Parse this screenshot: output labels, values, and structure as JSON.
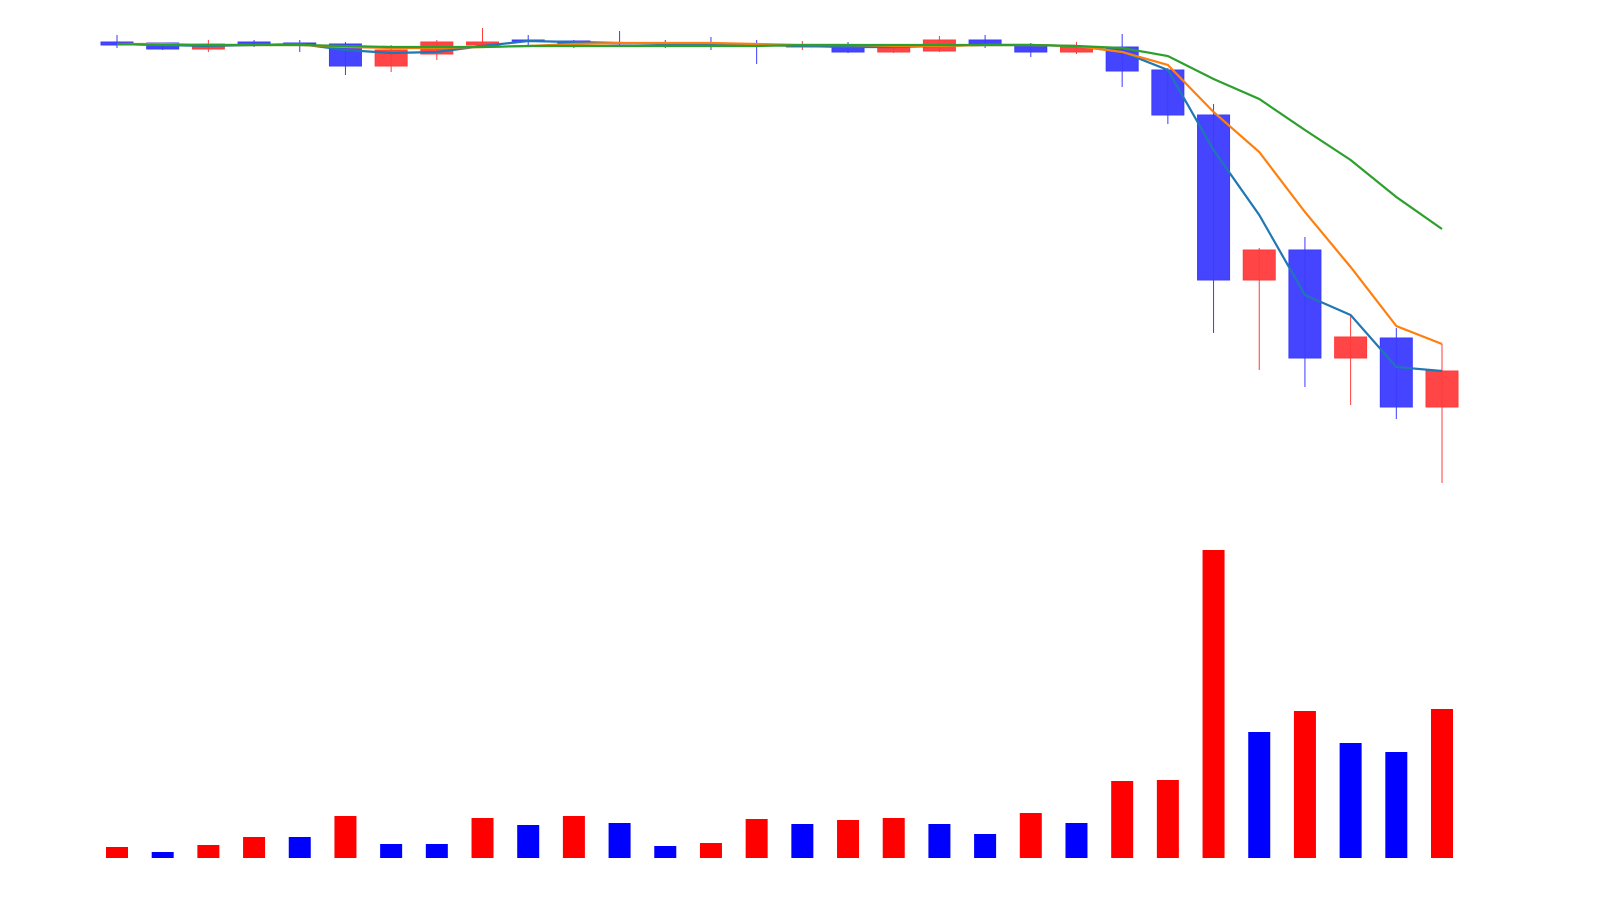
{
  "chart_data": {
    "type": "candlestick",
    "open": [
      100.2,
      100.0,
      98.8,
      100.2,
      100.0,
      99.8,
      95.4,
      97.8,
      99.6,
      100.6,
      100.4,
      100.0,
      100.0,
      99.8,
      99.8,
      99.2,
      99.6,
      98.2,
      98.4,
      100.6,
      99.6,
      98.2,
      99.2,
      94.6,
      85.6,
      52.6,
      58.6,
      37.0,
      41.0,
      27.2
    ],
    "close": [
      99.6,
      98.8,
      99.8,
      99.6,
      99.8,
      95.4,
      98.6,
      100.2,
      100.2,
      100.4,
      99.8,
      99.8,
      99.8,
      99.6,
      99.4,
      99.4,
      98.2,
      99.4,
      100.6,
      99.6,
      98.2,
      99.2,
      94.4,
      85.6,
      52.6,
      58.6,
      37.0,
      41.2,
      27.2,
      34.4
    ],
    "high": [
      101.6,
      100.0,
      100.6,
      100.6,
      100.6,
      100.2,
      99.6,
      100.6,
      103.0,
      101.6,
      100.6,
      102.4,
      100.6,
      101.2,
      100.6,
      100.4,
      100.2,
      99.8,
      101.4,
      101.6,
      100.0,
      100.2,
      101.8,
      95.0,
      87.8,
      59.0,
      61.2,
      45.4,
      43.0,
      39.8
    ],
    "low": [
      99.0,
      98.6,
      98.2,
      99.2,
      98.2,
      93.6,
      94.2,
      96.6,
      99.6,
      99.4,
      99.0,
      99.4,
      99.0,
      98.6,
      95.8,
      98.6,
      98.0,
      98.0,
      98.2,
      99.0,
      97.2,
      97.8,
      91.2,
      83.8,
      42.0,
      34.6,
      31.2,
      27.6,
      24.8,
      12.0
    ],
    "up_color": "#ff3b3b",
    "down_color": "#3b3bff",
    "ylim": [
      8.6,
      108.6
    ],
    "moving_averages": [
      {
        "color": "#1f77b4",
        "values": [
          99.8,
          99.6,
          99.4,
          99.6,
          99.8,
          98.6,
          98.0,
          98.2,
          99.4,
          100.4,
          100.2,
          100.0,
          99.8,
          99.6,
          99.6,
          99.4,
          99.2,
          99.2,
          99.4,
          99.6,
          99.6,
          99.4,
          98.2,
          94.6,
          78.6,
          65.6,
          49.6,
          45.6,
          35.2,
          34.4
        ]
      },
      {
        "color": "#ff7f0e",
        "values": [
          99.8,
          99.8,
          99.6,
          99.6,
          99.6,
          99.2,
          99.0,
          99.0,
          99.2,
          99.4,
          99.8,
          100.0,
          100.0,
          100.0,
          99.8,
          99.6,
          99.6,
          99.4,
          99.4,
          99.6,
          99.6,
          99.4,
          98.2,
          95.6,
          86.2,
          78.2,
          66.2,
          55.2,
          43.4,
          39.8
        ]
      },
      {
        "color": "#2ca02c",
        "values": [
          99.8,
          99.6,
          99.6,
          99.6,
          99.6,
          99.4,
          99.2,
          99.2,
          99.2,
          99.4,
          99.4,
          99.4,
          99.4,
          99.4,
          99.4,
          99.6,
          99.6,
          99.6,
          99.6,
          99.6,
          99.6,
          99.4,
          99.0,
          97.4,
          92.8,
          88.8,
          82.6,
          76.6,
          69.2,
          62.8
        ]
      }
    ],
    "volume": {
      "ylim": [
        0,
        308
      ],
      "values": [
        11,
        6,
        13,
        21,
        21,
        42,
        14,
        14,
        40,
        33,
        42,
        35,
        12,
        15,
        39,
        34,
        38,
        40,
        34,
        24,
        45,
        35,
        77,
        78,
        308,
        126,
        147,
        115,
        106,
        149
      ],
      "colors": [
        "#ff0000",
        "#0000ff",
        "#ff0000",
        "#ff0000",
        "#0000ff",
        "#ff0000",
        "#0000ff",
        "#0000ff",
        "#ff0000",
        "#0000ff",
        "#ff0000",
        "#0000ff",
        "#0000ff",
        "#ff0000",
        "#ff0000",
        "#0000ff",
        "#ff0000",
        "#ff0000",
        "#0000ff",
        "#0000ff",
        "#ff0000",
        "#0000ff",
        "#ff0000",
        "#ff0000",
        "#ff0000",
        "#0000ff",
        "#ff0000",
        "#0000ff",
        "#0000ff",
        "#ff0000"
      ]
    }
  }
}
